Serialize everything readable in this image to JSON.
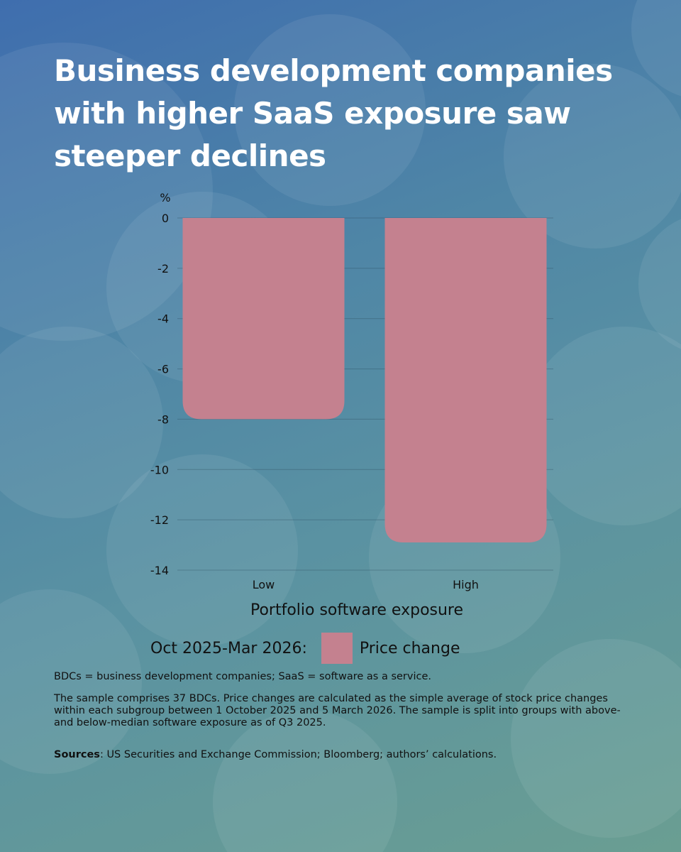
{
  "title": "Business development companies with higher SaaS exposure saw steeper declines",
  "chart_data": {
    "type": "bar",
    "categories": [
      "Low",
      "High"
    ],
    "series": [
      {
        "name": "Price change",
        "values": [
          -8.0,
          -12.9
        ],
        "color": "#c4818f"
      }
    ],
    "xlabel": "Portfolio software exposure",
    "ylabel": "%",
    "ylim": [
      -14,
      0
    ],
    "yticks": [
      0,
      -2,
      -4,
      -6,
      -8,
      -10,
      -12,
      -14
    ],
    "grid": true,
    "legend_position": "bottom"
  },
  "legend": {
    "prefix": "Oct 2025-Mar 2026:",
    "label": "Price change"
  },
  "notes": {
    "abbrev": "BDCs = business development companies; SaaS = software as a service.",
    "method": "The sample comprises 37 BDCs. Price changes are calculated as the simple average of stock price changes within each subgroup between 1 October 2025 and 5 March 2026. The sample is split into groups with above- and below-median software exposure as of Q3 2025.",
    "sources_label": "Sources",
    "sources_text": ": US Securities and Exchange Commission; Bloomberg; authors’ calculations."
  }
}
